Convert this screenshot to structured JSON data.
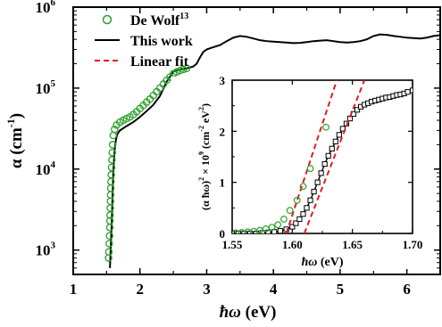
{
  "chart_data": [
    {
      "type": "line",
      "role": "main",
      "xlabel_sym": "ħω",
      "xlabel_unit": "(eV)",
      "ylabel_sym": "α",
      "ylabel_unit": "(cm",
      "ylabel_exp": "-1",
      "ylabel_close": ")",
      "xlim": [
        1,
        6.5
      ],
      "ylim": [
        500,
        1000000
      ],
      "yscale": "log",
      "x_ticks": [
        1,
        2,
        3,
        4,
        5,
        6
      ],
      "x_tick_labels": [
        "1",
        "2",
        "3",
        "4",
        "5",
        "6"
      ],
      "y_ticks": [
        1000,
        10000,
        100000,
        1000000
      ],
      "y_tick_bases": [
        "10",
        "10",
        "10",
        "10"
      ],
      "y_tick_exps": [
        "3",
        "4",
        "5",
        "6"
      ],
      "legend": [
        {
          "label": "De Wolf",
          "superscript": "13",
          "marker": "circle",
          "color": "#2ca02c"
        },
        {
          "label": "This work",
          "marker": "line",
          "color": "#000000"
        },
        {
          "label": "Linear fit",
          "marker": "dashed",
          "color": "#e41a1c"
        }
      ],
      "legend_position": "top-left",
      "series": [
        {
          "name": "This work",
          "color": "#000000",
          "style": "solid",
          "x": [
            1.55,
            1.58,
            1.6,
            1.62,
            1.64,
            1.66,
            1.7,
            1.8,
            1.9,
            2.0,
            2.1,
            2.2,
            2.3,
            2.4,
            2.5,
            2.6,
            2.7,
            2.8,
            2.85,
            2.9,
            2.95,
            3.0,
            3.05,
            3.1,
            3.2,
            3.3,
            3.4,
            3.5,
            3.6,
            3.7,
            3.8,
            3.9,
            4.0,
            4.1,
            4.2,
            4.3,
            4.4,
            4.5,
            4.6,
            4.7,
            4.8,
            4.9,
            5.0,
            5.1,
            5.2,
            5.3,
            5.4,
            5.5,
            5.6,
            5.7,
            5.8,
            5.9,
            6.0,
            6.1,
            6.2,
            6.3,
            6.4,
            6.5
          ],
          "y": [
            600,
            2500,
            9000,
            17000,
            23000,
            27000,
            30000,
            34000,
            38000,
            44000,
            52000,
            62000,
            80000,
            120000,
            160000,
            170000,
            175000,
            185000,
            200000,
            240000,
            280000,
            300000,
            310000,
            320000,
            340000,
            380000,
            420000,
            440000,
            430000,
            410000,
            390000,
            380000,
            375000,
            370000,
            365000,
            360000,
            362000,
            370000,
            380000,
            385000,
            390000,
            380000,
            370000,
            365000,
            370000,
            380000,
            400000,
            440000,
            460000,
            455000,
            440000,
            430000,
            420000,
            415000,
            410000,
            420000,
            440000,
            450000
          ]
        },
        {
          "name": "De Wolf",
          "color": "#2ca02c",
          "style": "markers",
          "x": [
            1.53,
            1.535,
            1.54,
            1.545,
            1.548,
            1.55,
            1.552,
            1.555,
            1.558,
            1.56,
            1.563,
            1.566,
            1.57,
            1.575,
            1.58,
            1.585,
            1.59,
            1.6,
            1.62,
            1.65,
            1.7,
            1.75,
            1.8,
            1.85,
            1.9,
            1.95,
            2.0,
            2.05,
            2.1,
            2.15,
            2.2,
            2.25,
            2.3,
            2.35,
            2.4,
            2.45,
            2.5,
            2.55,
            2.6,
            2.65,
            2.7
          ],
          "y": [
            800,
            950,
            1200,
            1500,
            1900,
            2300,
            2700,
            3300,
            4000,
            4800,
            5800,
            7000,
            8500,
            10500,
            13000,
            16000,
            20000,
            26000,
            31000,
            35000,
            38000,
            40000,
            42000,
            44000,
            47000,
            51000,
            56000,
            61000,
            67000,
            73000,
            81000,
            90000,
            100000,
            112000,
            125000,
            137000,
            150000,
            158000,
            165000,
            170000,
            175000
          ]
        }
      ]
    },
    {
      "type": "scatter",
      "role": "inset",
      "xlabel_sym": "ħω",
      "xlabel_unit": "(eV)",
      "ylabel_text": "(α ħω)",
      "ylabel_sq": "2",
      "ylabel_mid": "× 10",
      "ylabel_exp": "9",
      "ylabel_unit": "(cm",
      "ylabel_unit_exp": "-2",
      "ylabel_tail": "eV",
      "ylabel_tail_exp": "2",
      "ylabel_close": ")",
      "xlim": [
        1.55,
        1.7
      ],
      "ylim": [
        0,
        3
      ],
      "x_ticks": [
        1.55,
        1.6,
        1.65,
        1.7
      ],
      "x_tick_labels": [
        "1.55",
        "1.60",
        "1.65",
        "1.70"
      ],
      "y_ticks": [
        0,
        1,
        2,
        3
      ],
      "y_tick_labels": [
        "0",
        "1",
        "2",
        "3"
      ],
      "series": [
        {
          "name": "This work",
          "color": "#000000",
          "style": "line-square",
          "x": [
            1.55,
            1.555,
            1.56,
            1.565,
            1.57,
            1.575,
            1.58,
            1.585,
            1.59,
            1.595,
            1.6,
            1.603,
            1.606,
            1.609,
            1.612,
            1.615,
            1.618,
            1.621,
            1.624,
            1.627,
            1.63,
            1.633,
            1.636,
            1.639,
            1.642,
            1.645,
            1.648,
            1.651,
            1.654,
            1.657,
            1.66,
            1.663,
            1.666,
            1.669,
            1.672,
            1.675,
            1.678,
            1.681,
            1.684,
            1.687,
            1.69,
            1.693,
            1.696,
            1.7
          ],
          "y": [
            0.0,
            0.0,
            0.0,
            0.0,
            0.0,
            0.01,
            0.02,
            0.03,
            0.05,
            0.08,
            0.13,
            0.2,
            0.28,
            0.38,
            0.5,
            0.65,
            0.82,
            1.0,
            1.18,
            1.36,
            1.52,
            1.66,
            1.8,
            1.93,
            2.05,
            2.15,
            2.25,
            2.34,
            2.42,
            2.48,
            2.52,
            2.55,
            2.58,
            2.6,
            2.62,
            2.64,
            2.66,
            2.67,
            2.69,
            2.71,
            2.72,
            2.74,
            2.77,
            2.8
          ]
        },
        {
          "name": "De Wolf",
          "color": "#2ca02c",
          "style": "markers",
          "x": [
            1.553,
            1.558,
            1.563,
            1.568,
            1.573,
            1.578,
            1.583,
            1.588,
            1.593,
            1.598,
            1.604,
            1.609,
            1.615,
            1.628
          ],
          "y": [
            0.01,
            0.02,
            0.03,
            0.04,
            0.06,
            0.09,
            0.12,
            0.17,
            0.28,
            0.45,
            0.65,
            0.92,
            1.27,
            2.08
          ]
        },
        {
          "name": "Linear fit",
          "color": "#e41a1c",
          "style": "dashed",
          "x": [
            1.595,
            1.637
          ],
          "y": [
            0,
            3
          ]
        },
        {
          "name": "Linear fit",
          "color": "#e41a1c",
          "style": "dashed",
          "x": [
            1.61,
            1.66
          ],
          "y": [
            0,
            3
          ]
        }
      ]
    }
  ]
}
